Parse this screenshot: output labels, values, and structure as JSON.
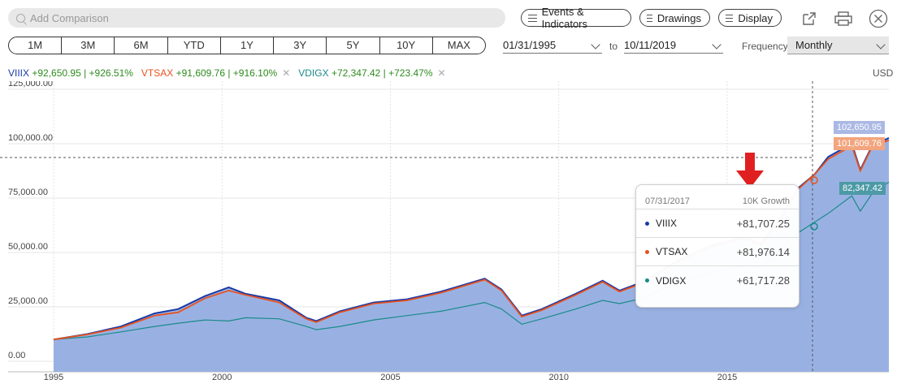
{
  "search": {
    "placeholder": "Add Comparison"
  },
  "toolbar": {
    "events_label": "Events & Indicators",
    "drawings_label": "Drawings",
    "display_label": "Display"
  },
  "ranges": [
    "1M",
    "3M",
    "6M",
    "YTD",
    "1Y",
    "3Y",
    "5Y",
    "10Y",
    "MAX"
  ],
  "dates": {
    "start": "01/31/1995",
    "to_label": "to",
    "end": "10/11/2019"
  },
  "frequency": {
    "label": "Frequency",
    "value": "Monthly"
  },
  "legend": [
    {
      "ticker": "VIIIX",
      "stats": "+92,650.95 | +926.51%",
      "color": "#1a3aa8"
    },
    {
      "ticker": "VTSAX",
      "stats": "+91,609.76 | +916.10%",
      "color": "#e8521e"
    },
    {
      "ticker": "VDIGX",
      "stats": "+72,347.42 | +723.47%",
      "color": "#1a8a8a"
    }
  ],
  "currency": "USD",
  "flags": {
    "viiix": "102,650.95",
    "vtsax": "101,609.76",
    "vdigx": "82,347.42"
  },
  "tooltip": {
    "date": "07/31/2017",
    "title": "10K Growth",
    "rows": [
      {
        "ticker": "VIIIX",
        "value": "+81,707.25",
        "color": "#1a3aa8"
      },
      {
        "ticker": "VTSAX",
        "value": "+81,976.14",
        "color": "#e8521e"
      },
      {
        "ticker": "VDIGX",
        "value": "+61,717.28",
        "color": "#1a8a8a"
      }
    ]
  },
  "chart_data": {
    "type": "line",
    "ylim": [
      0,
      125000
    ],
    "y_ticks": [
      "125,000.00",
      "100,000.00",
      "75,000.00",
      "50,000.00",
      "25,000.00",
      "0.00"
    ],
    "x_ticks": [
      "1995",
      "2000",
      "2005",
      "2010",
      "2015"
    ],
    "x": [
      1995.0,
      1996.0,
      1997.0,
      1998.0,
      1998.7,
      1999.5,
      2000.2,
      2000.7,
      2001.7,
      2002.5,
      2002.8,
      2003.5,
      2004.5,
      2005.5,
      2006.5,
      2007.8,
      2008.3,
      2008.9,
      2009.5,
      2010.5,
      2011.3,
      2011.8,
      2012.5,
      2013.5,
      2014.5,
      2015.5,
      2016.0,
      2016.5,
      2017.1,
      2017.6,
      2018.0,
      2018.7,
      2018.95,
      2019.3,
      2019.8
    ],
    "series": [
      {
        "name": "VIIIX",
        "color": "#1a3aa8",
        "values": [
          10000,
          12500,
          16000,
          22000,
          24000,
          30000,
          34000,
          31000,
          28000,
          20000,
          18500,
          23000,
          27000,
          28500,
          32000,
          38000,
          33000,
          21000,
          24000,
          31000,
          37000,
          32500,
          36500,
          46000,
          53000,
          57000,
          54000,
          64000,
          79500,
          86000,
          94000,
          100000,
          88000,
          99000,
          102650
        ]
      },
      {
        "name": "VTSAX",
        "color": "#e8521e",
        "values": [
          10000,
          12300,
          15500,
          21000,
          22500,
          29000,
          32500,
          30500,
          27000,
          19500,
          18000,
          22500,
          26500,
          28000,
          31500,
          37500,
          32500,
          20500,
          23500,
          30500,
          36500,
          32000,
          36000,
          45500,
          52500,
          56500,
          53500,
          63500,
          79000,
          86000,
          93000,
          99000,
          87500,
          98500,
          101610
        ]
      },
      {
        "name": "VDIGX",
        "color": "#1a8a8a",
        "values": [
          10000,
          11200,
          13500,
          16000,
          17500,
          19000,
          18500,
          20000,
          19500,
          16000,
          14500,
          16000,
          19000,
          21000,
          23000,
          27000,
          24000,
          17000,
          19500,
          24000,
          28000,
          26500,
          29000,
          36000,
          41000,
          44000,
          43000,
          50000,
          59000,
          64000,
          68000,
          76000,
          69000,
          77000,
          82350
        ]
      }
    ]
  }
}
